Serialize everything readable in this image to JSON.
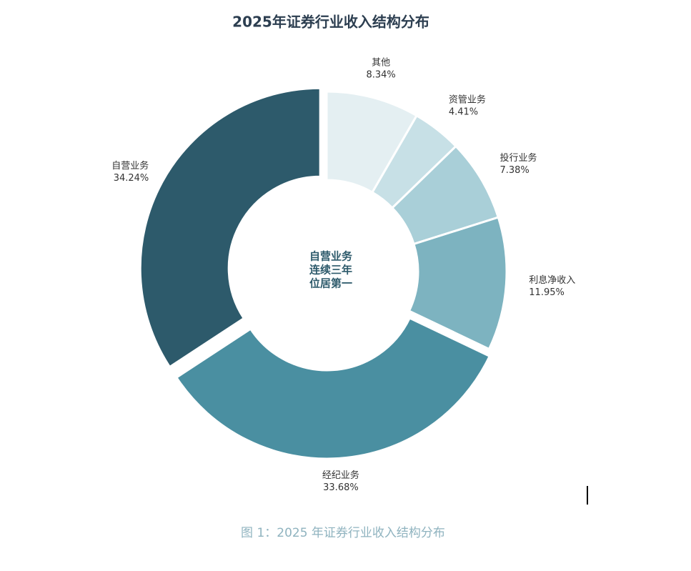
{
  "chart_data": {
    "type": "donut",
    "title": "2025年证券行业收入结构分布",
    "categories": [
      "其他",
      "资管业务",
      "投行业务",
      "利息净收入",
      "经纪业务",
      "自营业务"
    ],
    "values": [
      8.34,
      4.41,
      7.38,
      11.95,
      33.68,
      34.24
    ],
    "value_labels": [
      "8.34%",
      "4.41%",
      "7.38%",
      "11.95%",
      "33.68%",
      "34.24%"
    ],
    "colors": [
      "#e4eff2",
      "#c7e0e6",
      "#a9cfd8",
      "#7db3c0",
      "#4a8fa1",
      "#2d5a6b"
    ],
    "center_text": [
      "自营业务",
      "连续三年",
      "位居第一"
    ]
  },
  "caption": "图 1：2025 年证券行业收入结构分布"
}
